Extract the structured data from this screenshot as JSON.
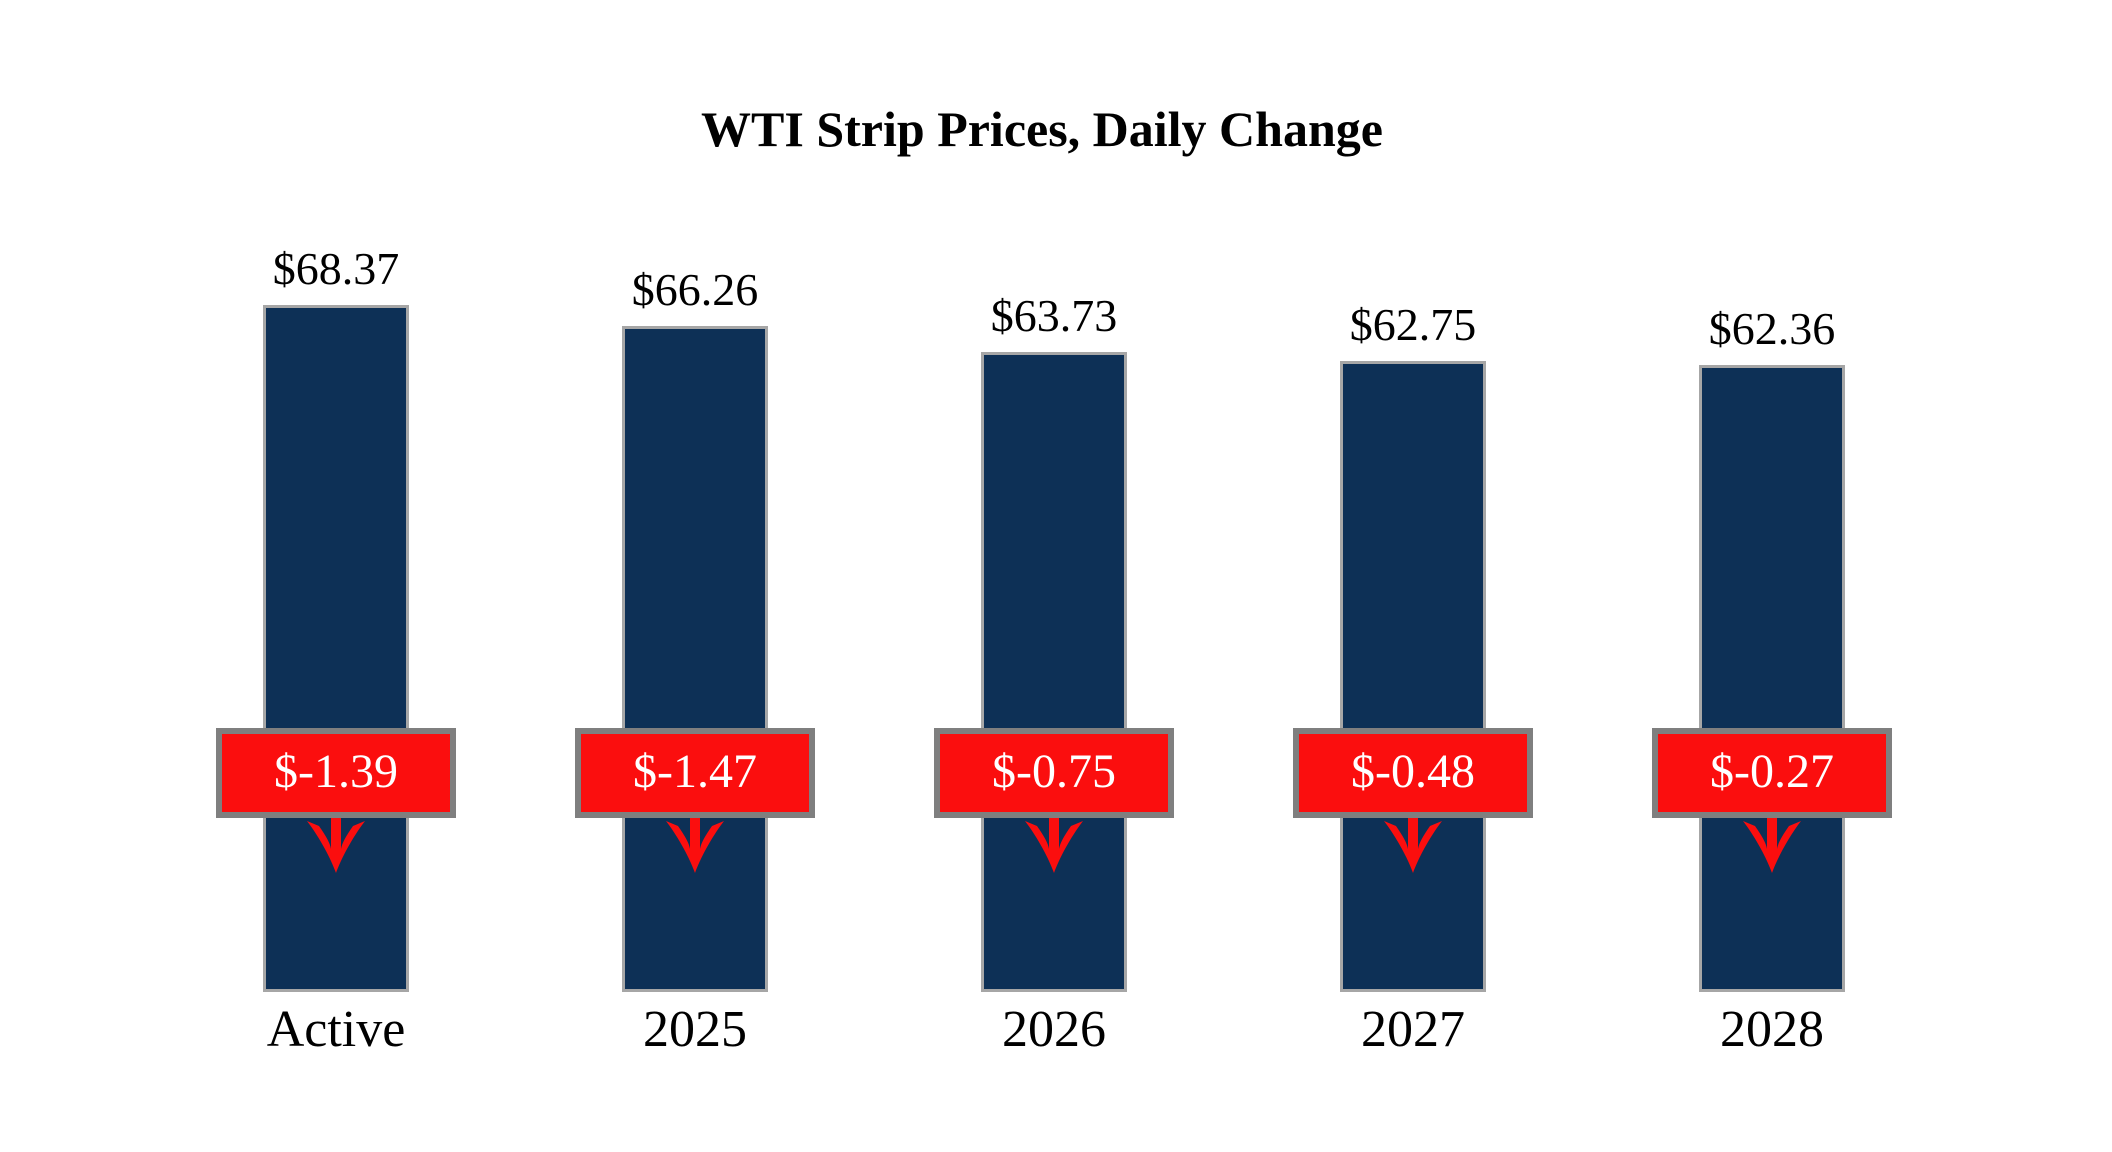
{
  "title": "WTI Strip Prices, Daily Change",
  "chart_data": {
    "type": "bar",
    "title": "WTI Strip Prices, Daily Change",
    "categories": [
      "Active",
      "2025",
      "2026",
      "2027",
      "2028"
    ],
    "values": [
      68.37,
      66.26,
      63.73,
      62.75,
      62.36
    ],
    "value_labels": [
      "$68.37",
      "$66.26",
      "$63.73",
      "$62.75",
      "$62.36"
    ],
    "daily_changes": [
      -1.39,
      -1.47,
      -0.75,
      -0.48,
      -0.27
    ],
    "change_labels": [
      "$-1.39",
      "$-1.47",
      "$-0.75",
      "$-0.48",
      "$-0.27"
    ],
    "change_direction": "down",
    "xlabel": "",
    "ylabel": "",
    "ylim": [
      0,
      70
    ],
    "grid": false,
    "legend": false,
    "colors": {
      "bar_fill": "#0d3056",
      "bar_border": "#a6a6a6",
      "change_box_fill": "#fb0e0e",
      "change_box_border": "#7f7f7f",
      "change_text": "#ffffff",
      "arrow": "#fb0e0e",
      "label_text": "#000000",
      "background": "#ffffff"
    }
  }
}
